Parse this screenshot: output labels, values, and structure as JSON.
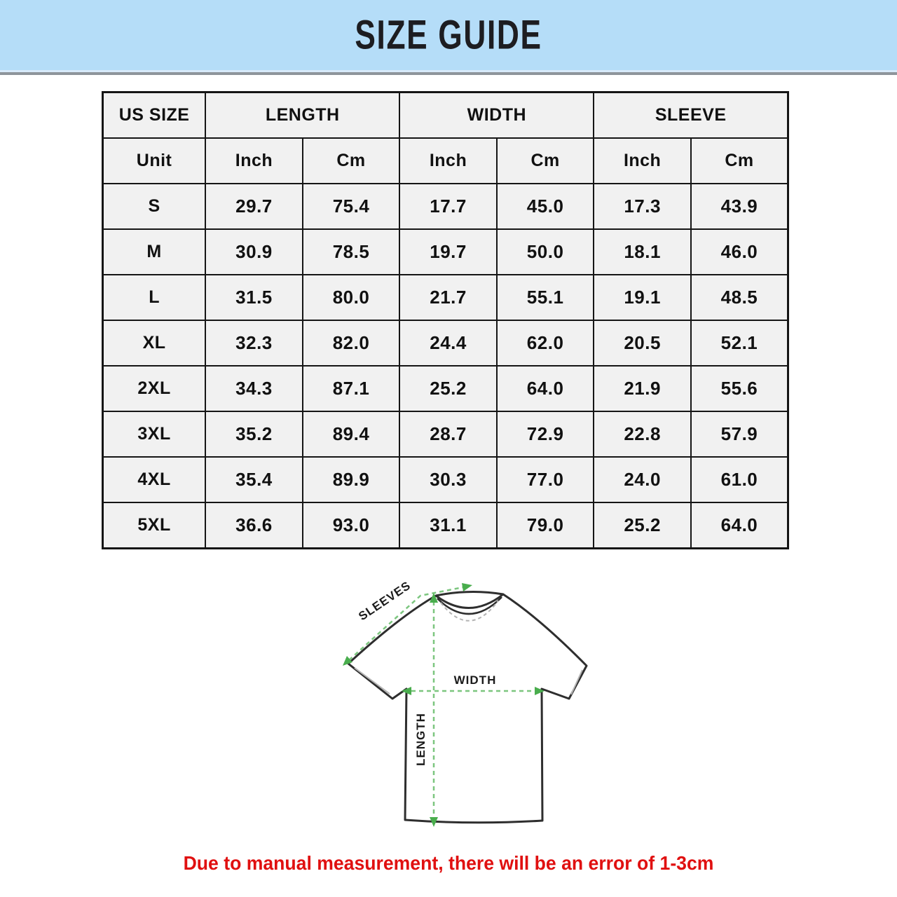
{
  "banner": {
    "title": "SIZE GUIDE",
    "bg_color": "#b5ddf8"
  },
  "table": {
    "size_col_header": "US SIZE",
    "col_groups": [
      "LENGTH",
      "WIDTH",
      "SLEEVE"
    ],
    "unit_label": "Unit",
    "unit_cols": [
      "Inch",
      "Cm",
      "Inch",
      "Cm",
      "Inch",
      "Cm"
    ],
    "rows": [
      {
        "size": "S",
        "values": [
          "29.7",
          "75.4",
          "17.7",
          "45.0",
          "17.3",
          "43.9"
        ]
      },
      {
        "size": "M",
        "values": [
          "30.9",
          "78.5",
          "19.7",
          "50.0",
          "18.1",
          "46.0"
        ]
      },
      {
        "size": "L",
        "values": [
          "31.5",
          "80.0",
          "21.7",
          "55.1",
          "19.1",
          "48.5"
        ]
      },
      {
        "size": "XL",
        "values": [
          "32.3",
          "82.0",
          "24.4",
          "62.0",
          "20.5",
          "52.1"
        ]
      },
      {
        "size": "2XL",
        "values": [
          "34.3",
          "87.1",
          "25.2",
          "64.0",
          "21.9",
          "55.6"
        ]
      },
      {
        "size": "3XL",
        "values": [
          "35.2",
          "89.4",
          "28.7",
          "72.9",
          "22.8",
          "57.9"
        ]
      },
      {
        "size": "4XL",
        "values": [
          "35.4",
          "89.9",
          "30.3",
          "77.0",
          "24.0",
          "61.0"
        ]
      },
      {
        "size": "5XL",
        "values": [
          "36.6",
          "93.0",
          "31.1",
          "79.0",
          "25.2",
          "64.0"
        ]
      }
    ]
  },
  "diagram": {
    "sleeves_label": "SLEEVES",
    "width_label": "WIDTH",
    "length_label": "LENGTH",
    "arrow_color": "#7cc67f",
    "arrowhead_color": "#49ad4d",
    "outline_color": "#2e2e2e"
  },
  "footer": {
    "note": "Due to manual measurement, there will be an error of 1-3cm",
    "color": "#e01010"
  }
}
